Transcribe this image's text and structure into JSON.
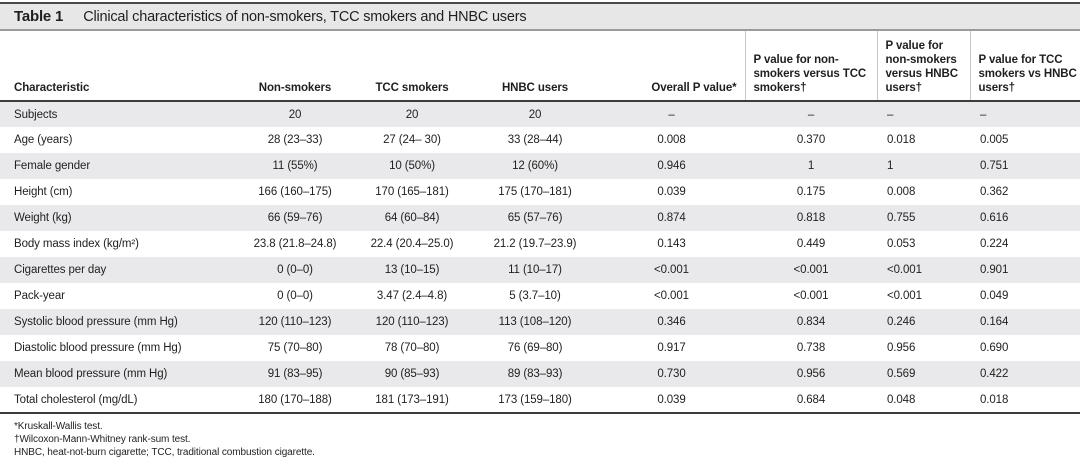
{
  "title_bar": {
    "label": "Table 1",
    "title": "Clinical characteristics of non-smokers, TCC smokers and HNBC users"
  },
  "table": {
    "columns": [
      "Characteristic",
      "Non-smokers",
      "TCC smokers",
      "HNBC users",
      "Overall P value*",
      "P value for non-smokers versus TCC smokers†",
      "P value for non-smokers versus HNBC users†",
      "P value for TCC smokers vs HNBC users†"
    ],
    "rows": [
      {
        "characteristic": "Subjects",
        "values": [
          "20",
          "20",
          "20",
          "–",
          "–",
          "–",
          "–"
        ]
      },
      {
        "characteristic": "Age (years)",
        "values": [
          "28 (23–33)",
          "27 (24– 30)",
          "33 (28–44)",
          "0.008",
          "0.370",
          "0.018",
          "0.005"
        ]
      },
      {
        "characteristic": "Female gender",
        "values": [
          "11 (55%)",
          "10 (50%)",
          "12 (60%)",
          "0.946",
          "1",
          "1",
          "0.751"
        ]
      },
      {
        "characteristic": "Height (cm)",
        "values": [
          "166 (160–175)",
          "170 (165–181)",
          "175 (170–181)",
          "0.039",
          "0.175",
          "0.008",
          "0.362"
        ]
      },
      {
        "characteristic": "Weight (kg)",
        "values": [
          "66 (59–76)",
          "64 (60–84)",
          "65 (57–76)",
          "0.874",
          "0.818",
          "0.755",
          "0.616"
        ]
      },
      {
        "characteristic": "Body mass index (kg/m²)",
        "values": [
          "23.8 (21.8–24.8)",
          "22.4 (20.4–25.0)",
          "21.2 (19.7–23.9)",
          "0.143",
          "0.449",
          "0.053",
          "0.224"
        ]
      },
      {
        "characteristic": "Cigarettes per day",
        "values": [
          "0 (0–0)",
          "13 (10–15)",
          "11 (10–17)",
          "<0.001",
          "<0.001",
          "<0.001",
          "0.901"
        ]
      },
      {
        "characteristic": "Pack-year",
        "values": [
          "0 (0–0)",
          "3.47 (2.4–4.8)",
          "5 (3.7–10)",
          "<0.001",
          "<0.001",
          "<0.001",
          "0.049"
        ]
      },
      {
        "characteristic": "Systolic blood pressure (mm Hg)",
        "values": [
          "120 (110–123)",
          "120 (110–123)",
          "113 (108–120)",
          "0.346",
          "0.834",
          "0.246",
          "0.164"
        ]
      },
      {
        "characteristic": "Diastolic blood pressure (mm Hg)",
        "values": [
          "75 (70–80)",
          "78 (70–80)",
          "76 (69–80)",
          "0.917",
          "0.738",
          "0.956",
          "0.690"
        ]
      },
      {
        "characteristic": "Mean blood pressure (mm Hg)",
        "values": [
          "91 (83–95)",
          "90 (85–93)",
          "89 (83–93)",
          "0.730",
          "0.956",
          "0.569",
          "0.422"
        ]
      },
      {
        "characteristic": "Total cholesterol (mg/dL)",
        "values": [
          "180 (170–188)",
          "181 (173–191)",
          "173 (159–180)",
          "0.039",
          "0.684",
          "0.048",
          "0.018"
        ]
      }
    ]
  },
  "footnotes": [
    "*Kruskall-Wallis test.",
    "†Wilcoxon-Mann-Whitney rank-sum test.",
    "HNBC, heat-not-burn cigarette; TCC, traditional combustion cigarette."
  ],
  "colors": {
    "stripe": "#e9e9eb",
    "title_bar_bg": "#e7e7e8",
    "rule_dark": "#3c3c3c",
    "rule_gray": "#9c9c9c",
    "header_separator": "#c6c6c6",
    "text": "#1f1f1f"
  }
}
